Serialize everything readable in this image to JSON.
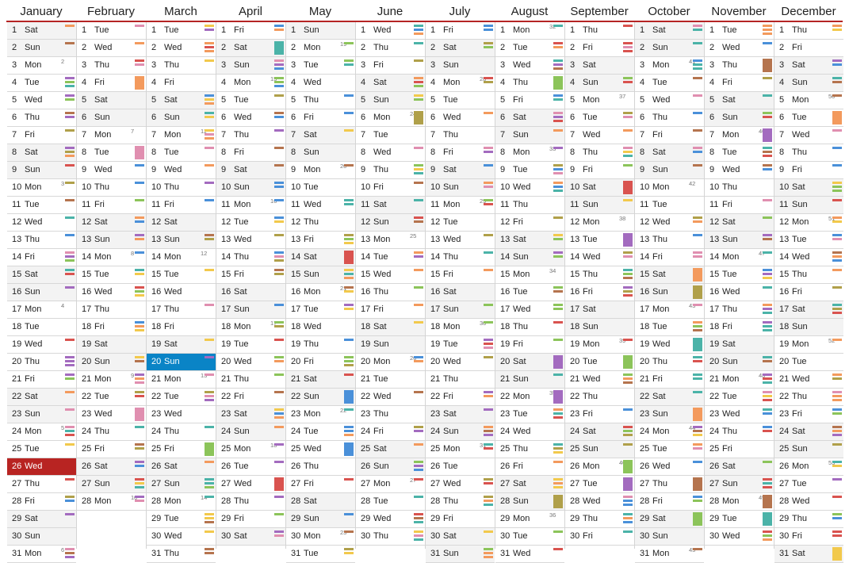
{
  "calendar": {
    "year_start_weekday": 6,
    "months": [
      {
        "name": "January",
        "days": 31,
        "start": 6
      },
      {
        "name": "February",
        "days": 28,
        "start": 2
      },
      {
        "name": "March",
        "days": 31,
        "start": 2
      },
      {
        "name": "April",
        "days": 30,
        "start": 5
      },
      {
        "name": "May",
        "days": 31,
        "start": 0
      },
      {
        "name": "June",
        "days": 30,
        "start": 3
      },
      {
        "name": "July",
        "days": 31,
        "start": 5
      },
      {
        "name": "August",
        "days": 31,
        "start": 1
      },
      {
        "name": "September",
        "days": 30,
        "start": 4
      },
      {
        "name": "October",
        "days": 31,
        "start": 6
      },
      {
        "name": "November",
        "days": 30,
        "start": 2
      },
      {
        "name": "December",
        "days": 31,
        "start": 4
      }
    ],
    "weekday_labels": [
      "Sun",
      "Mon",
      "Tue",
      "Wed",
      "Thu",
      "Fri",
      "Sat"
    ],
    "today": {
      "month": 3,
      "day": 20
    },
    "marked": {
      "month": 1,
      "day": 26
    },
    "week_number_first": 1,
    "event_colors": {
      "blue": "#4a90d9",
      "orange": "#f39a5d",
      "green": "#8cc45a",
      "yellow": "#f2c94c",
      "purple": "#a36bbf",
      "brown": "#b5744e",
      "red": "#d9534f",
      "teal": "#4bb3a8",
      "pink": "#e08fb0",
      "olive": "#b0a04a"
    },
    "accent_color": "#b52424",
    "today_color": "#0a84c6"
  }
}
